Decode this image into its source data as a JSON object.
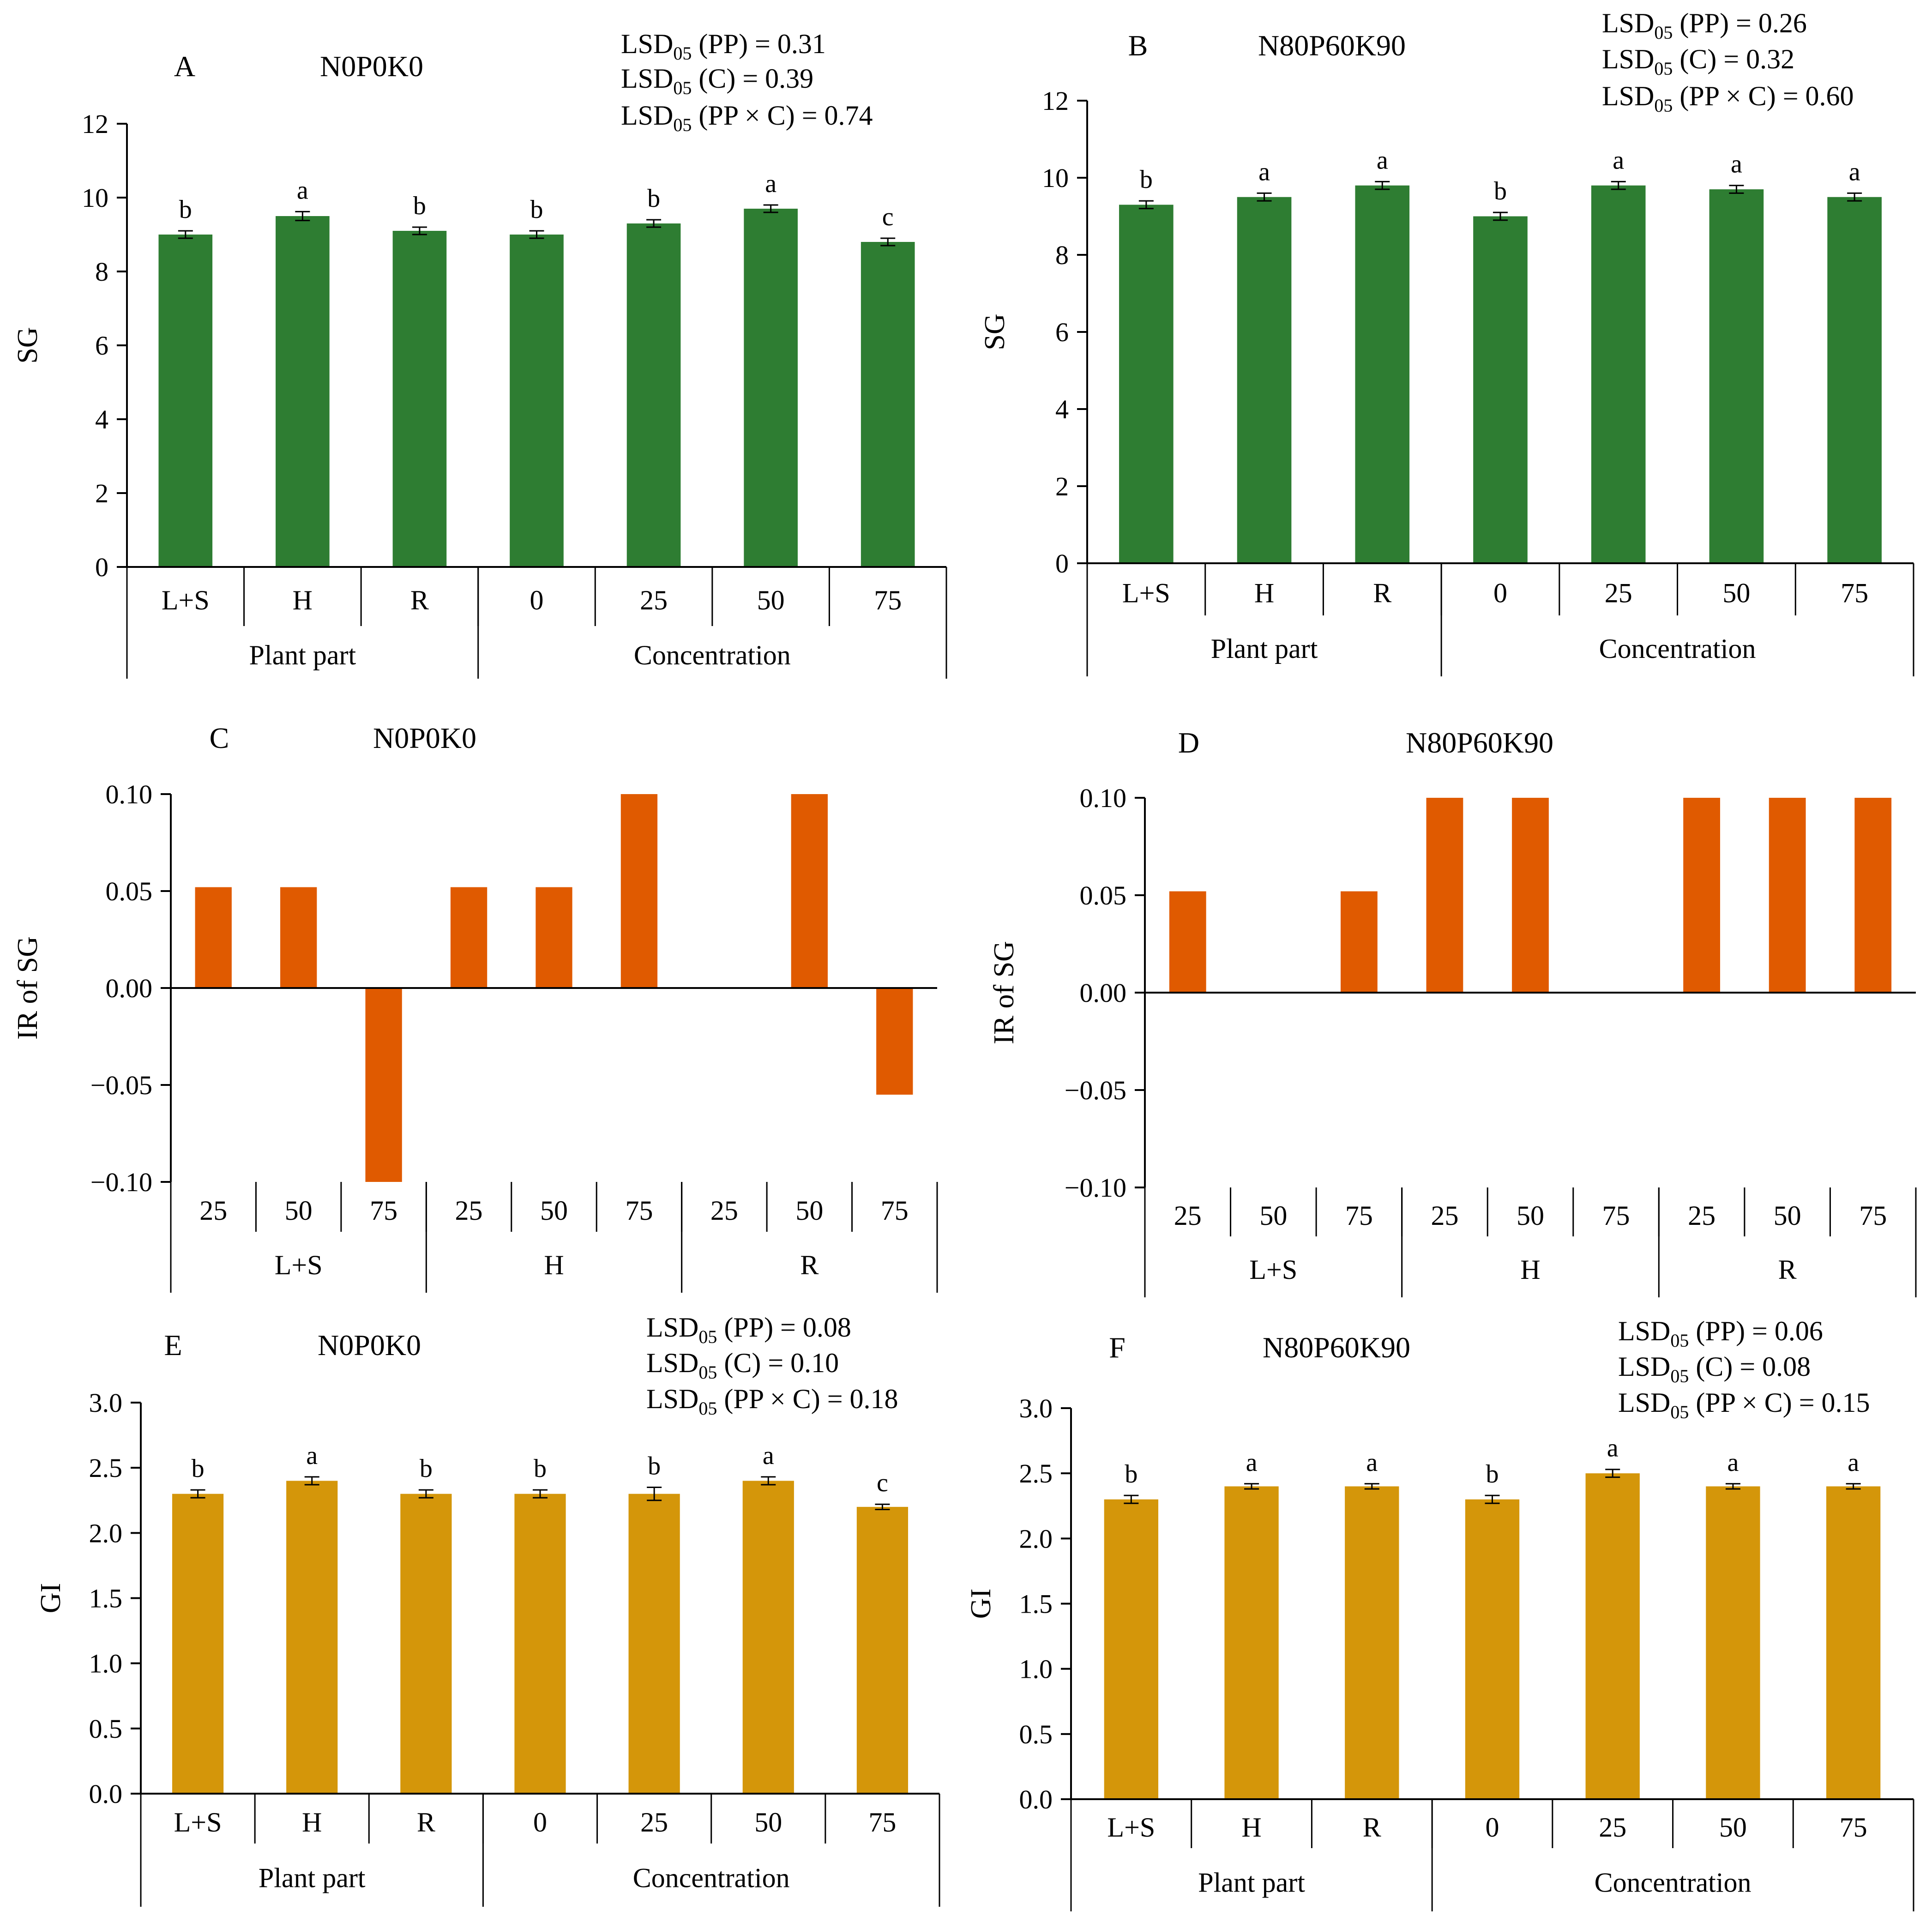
{
  "figure": {
    "type": "multi-panel bar chart"
  },
  "colors": {
    "green": "#2e7d32",
    "orange": "#e05a00",
    "gold": "#d4960a",
    "axis": "#000000"
  },
  "chart_data": [
    {
      "id": "A",
      "panel_letter": "A",
      "title": "N0P0K0",
      "type": "bar",
      "ylabel": "SG",
      "ylim": [
        0,
        12
      ],
      "yticks": [
        "0",
        "2",
        "4",
        "6",
        "8",
        "10",
        "12"
      ],
      "ytick_values": [
        0,
        2,
        4,
        6,
        8,
        10,
        12
      ],
      "categories": [
        "L+S",
        "H",
        "R",
        "0",
        "25",
        "50",
        "75"
      ],
      "values": [
        9.0,
        9.5,
        9.1,
        9.0,
        9.3,
        9.7,
        8.8
      ],
      "errors": [
        0.1,
        0.12,
        0.1,
        0.1,
        0.1,
        0.1,
        0.1
      ],
      "letters": [
        "b",
        "a",
        "b",
        "b",
        "b",
        "a",
        "c"
      ],
      "groups": [
        {
          "label": "Plant part",
          "span": 3
        },
        {
          "label": "Concentration",
          "span": 4
        }
      ],
      "lsd": [
        {
          "pre": "LSD",
          "sub": "05",
          "post": " (PP) = 0.31"
        },
        {
          "pre": "LSD",
          "sub": "05",
          "post": " (C) = 0.39"
        },
        {
          "pre": "LSD",
          "sub": "05",
          "post": " (PP × C) = 0.74"
        }
      ],
      "color_key": "green"
    },
    {
      "id": "B",
      "panel_letter": "B",
      "title": "N80P60K90",
      "type": "bar",
      "ylabel": "SG",
      "ylim": [
        0,
        12
      ],
      "yticks": [
        "0",
        "2",
        "4",
        "6",
        "8",
        "10",
        "12"
      ],
      "ytick_values": [
        0,
        2,
        4,
        6,
        8,
        10,
        12
      ],
      "categories": [
        "L+S",
        "H",
        "R",
        "0",
        "25",
        "50",
        "75"
      ],
      "values": [
        9.3,
        9.5,
        9.8,
        9.0,
        9.8,
        9.7,
        9.5
      ],
      "errors": [
        0.1,
        0.1,
        0.1,
        0.1,
        0.1,
        0.1,
        0.1
      ],
      "letters": [
        "b",
        "a",
        "a",
        "b",
        "a",
        "a",
        "a"
      ],
      "groups": [
        {
          "label": "Plant part",
          "span": 3
        },
        {
          "label": "Concentration",
          "span": 4
        }
      ],
      "lsd": [
        {
          "pre": "LSD",
          "sub": "05",
          "post": " (PP) = 0.26"
        },
        {
          "pre": "LSD",
          "sub": "05",
          "post": " (C) = 0.32"
        },
        {
          "pre": "LSD",
          "sub": "05",
          "post": " (PP × C) = 0.60"
        }
      ],
      "color_key": "green"
    },
    {
      "id": "C",
      "panel_letter": "C",
      "title": "N0P0K0",
      "type": "bar",
      "ylabel": "IR of SG",
      "ylim": [
        -0.1,
        0.1
      ],
      "yticks": [
        "0.10",
        "0.05",
        "0.00",
        "−0.05",
        "−0.10"
      ],
      "ytick_values": [
        0.1,
        0.05,
        0.0,
        -0.05,
        -0.1
      ],
      "categories": [
        "25",
        "50",
        "75",
        "25",
        "50",
        "75",
        "25",
        "50",
        "75"
      ],
      "values": [
        0.052,
        0.052,
        -0.1,
        0.052,
        0.052,
        0.1,
        0.0,
        0.1,
        -0.055
      ],
      "groups": [
        {
          "label": "L+S",
          "span": 3
        },
        {
          "label": "H",
          "span": 3
        },
        {
          "label": "R",
          "span": 3
        }
      ],
      "color_key": "orange"
    },
    {
      "id": "D",
      "panel_letter": "D",
      "title": "N80P60K90",
      "type": "bar",
      "ylabel": "IR of SG",
      "ylim": [
        -0.1,
        0.1
      ],
      "yticks": [
        "0.10",
        "0.05",
        "0.00",
        "−0.05",
        "−0.10"
      ],
      "ytick_values": [
        0.1,
        0.05,
        0.0,
        -0.05,
        -0.1
      ],
      "categories": [
        "25",
        "50",
        "75",
        "25",
        "50",
        "75",
        "25",
        "50",
        "75"
      ],
      "values": [
        0.052,
        0.0,
        0.052,
        0.1,
        0.1,
        0.0,
        0.1,
        0.1,
        0.1
      ],
      "groups": [
        {
          "label": "L+S",
          "span": 3
        },
        {
          "label": "H",
          "span": 3
        },
        {
          "label": "R",
          "span": 3
        }
      ],
      "color_key": "orange"
    },
    {
      "id": "E",
      "panel_letter": "E",
      "title": "N0P0K0",
      "type": "bar",
      "ylabel": "GI",
      "ylim": [
        0,
        3.0
      ],
      "yticks": [
        "0.0",
        "0.5",
        "1.0",
        "1.5",
        "2.0",
        "2.5",
        "3.0"
      ],
      "ytick_values": [
        0,
        0.5,
        1.0,
        1.5,
        2.0,
        2.5,
        3.0
      ],
      "categories": [
        "L+S",
        "H",
        "R",
        "0",
        "25",
        "50",
        "75"
      ],
      "values": [
        2.3,
        2.4,
        2.3,
        2.3,
        2.3,
        2.4,
        2.2
      ],
      "errors": [
        0.03,
        0.03,
        0.03,
        0.03,
        0.05,
        0.03,
        0.02
      ],
      "letters": [
        "b",
        "a",
        "b",
        "b",
        "b",
        "a",
        "c"
      ],
      "groups": [
        {
          "label": "Plant part",
          "span": 3
        },
        {
          "label": "Concentration",
          "span": 4
        }
      ],
      "lsd": [
        {
          "pre": "LSD",
          "sub": "05",
          "post": " (PP) = 0.08"
        },
        {
          "pre": "LSD",
          "sub": "05",
          "post": " (C) = 0.10"
        },
        {
          "pre": "LSD",
          "sub": "05",
          "post": " (PP × C) = 0.18"
        }
      ],
      "color_key": "gold"
    },
    {
      "id": "F",
      "panel_letter": "F",
      "title": "N80P60K90",
      "type": "bar",
      "ylabel": "GI",
      "ylim": [
        0,
        3.0
      ],
      "yticks": [
        "0.0",
        "0.5",
        "1.0",
        "1.5",
        "2.0",
        "2.5",
        "3.0"
      ],
      "ytick_values": [
        0,
        0.5,
        1.0,
        1.5,
        2.0,
        2.5,
        3.0
      ],
      "categories": [
        "L+S",
        "H",
        "R",
        "0",
        "25",
        "50",
        "75"
      ],
      "values": [
        2.3,
        2.4,
        2.4,
        2.3,
        2.5,
        2.4,
        2.4
      ],
      "errors": [
        0.03,
        0.02,
        0.02,
        0.03,
        0.03,
        0.02,
        0.02
      ],
      "letters": [
        "b",
        "a",
        "a",
        "b",
        "a",
        "a",
        "a"
      ],
      "groups": [
        {
          "label": "Plant part",
          "span": 3
        },
        {
          "label": "Concentration",
          "span": 4
        }
      ],
      "lsd": [
        {
          "pre": "LSD",
          "sub": "05",
          "post": " (PP) = 0.06"
        },
        {
          "pre": "LSD",
          "sub": "05",
          "post": " (C) = 0.08"
        },
        {
          "pre": "LSD",
          "sub": "05",
          "post": " (PP × C) = 0.15"
        }
      ],
      "color_key": "gold"
    }
  ]
}
